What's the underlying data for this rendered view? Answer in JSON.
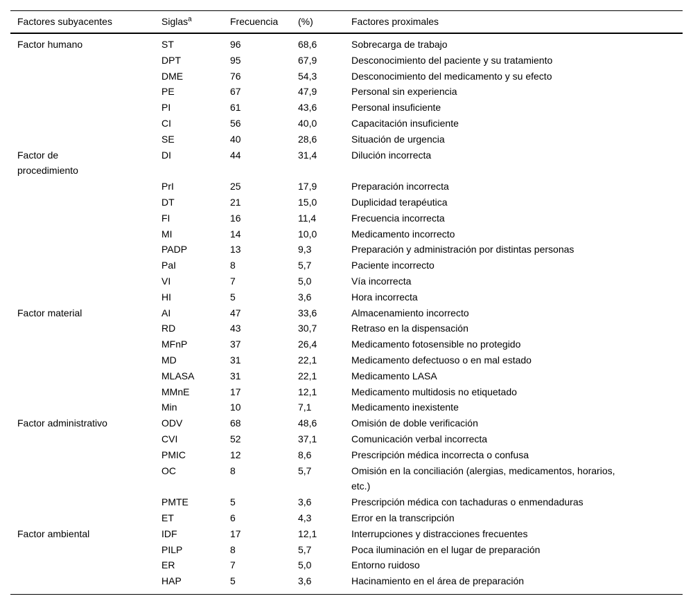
{
  "colors": {
    "background": "#ffffff",
    "text": "#000000",
    "rule": "#000000"
  },
  "table": {
    "headers": [
      {
        "label": "Factores subyacentes",
        "sup": ""
      },
      {
        "label": "Siglas",
        "sup": "a"
      },
      {
        "label": "Frecuencia",
        "sup": ""
      },
      {
        "label": "(%)",
        "sup": ""
      },
      {
        "label": "Factores proximales",
        "sup": ""
      }
    ],
    "rows": [
      {
        "group": "Factor humano",
        "sigla": "ST",
        "frecuencia": "96",
        "pct": "68,6",
        "proximal": "Sobrecarga de trabajo"
      },
      {
        "group": "",
        "sigla": "DPT",
        "frecuencia": "95",
        "pct": "67,9",
        "proximal": "Desconocimiento del paciente y su tratamiento"
      },
      {
        "group": "",
        "sigla": "DME",
        "frecuencia": "76",
        "pct": "54,3",
        "proximal": "Desconocimiento del medicamento y su efecto"
      },
      {
        "group": "",
        "sigla": "PE",
        "frecuencia": "67",
        "pct": "47,9",
        "proximal": "Personal sin experiencia"
      },
      {
        "group": "",
        "sigla": "PI",
        "frecuencia": "61",
        "pct": "43,6",
        "proximal": "Personal insuficiente"
      },
      {
        "group": "",
        "sigla": "CI",
        "frecuencia": "56",
        "pct": "40,0",
        "proximal": "Capacitación insuficiente"
      },
      {
        "group": "",
        "sigla": "SE",
        "frecuencia": "40",
        "pct": "28,6",
        "proximal": "Situación de urgencia"
      },
      {
        "group": "Factor de\nprocedimiento",
        "sigla": "DI",
        "frecuencia": "44",
        "pct": "31,4",
        "proximal": "Dilución incorrecta"
      },
      {
        "group": "",
        "sigla": "PrI",
        "frecuencia": "25",
        "pct": "17,9",
        "proximal": "Preparación incorrecta"
      },
      {
        "group": "",
        "sigla": "DT",
        "frecuencia": "21",
        "pct": "15,0",
        "proximal": "Duplicidad terapéutica"
      },
      {
        "group": "",
        "sigla": "FI",
        "frecuencia": "16",
        "pct": "11,4",
        "proximal": "Frecuencia incorrecta"
      },
      {
        "group": "",
        "sigla": "MI",
        "frecuencia": "14",
        "pct": "10,0",
        "proximal": "Medicamento incorrecto"
      },
      {
        "group": "",
        "sigla": "PADP",
        "frecuencia": "13",
        "pct": "9,3",
        "proximal": "Preparación y administración por distintas personas"
      },
      {
        "group": "",
        "sigla": "PaI",
        "frecuencia": "8",
        "pct": "5,7",
        "proximal": "Paciente incorrecto"
      },
      {
        "group": "",
        "sigla": "VI",
        "frecuencia": "7",
        "pct": "5,0",
        "proximal": "Vía incorrecta"
      },
      {
        "group": "",
        "sigla": "HI",
        "frecuencia": "5",
        "pct": "3,6",
        "proximal": "Hora incorrecta"
      },
      {
        "group": "Factor material",
        "sigla": "AI",
        "frecuencia": "47",
        "pct": "33,6",
        "proximal": "Almacenamiento incorrecto"
      },
      {
        "group": "",
        "sigla": "RD",
        "frecuencia": "43",
        "pct": "30,7",
        "proximal": "Retraso en la dispensación"
      },
      {
        "group": "",
        "sigla": "MFnP",
        "frecuencia": "37",
        "pct": "26,4",
        "proximal": "Medicamento fotosensible no protegido"
      },
      {
        "group": "",
        "sigla": "MD",
        "frecuencia": "31",
        "pct": "22,1",
        "proximal": "Medicamento defectuoso o en mal estado"
      },
      {
        "group": "",
        "sigla": "MLASA",
        "frecuencia": "31",
        "pct": "22,1",
        "proximal": "Medicamento LASA"
      },
      {
        "group": "",
        "sigla": "MMnE",
        "frecuencia": "17",
        "pct": "12,1",
        "proximal": "Medicamento multidosis no etiquetado"
      },
      {
        "group": "",
        "sigla": "Min",
        "frecuencia": "10",
        "pct": "7,1",
        "proximal": "Medicamento inexistente"
      },
      {
        "group": "Factor administrativo",
        "sigla": "ODV",
        "frecuencia": "68",
        "pct": "48,6",
        "proximal": "Omisión de doble verificación"
      },
      {
        "group": "",
        "sigla": "CVI",
        "frecuencia": "52",
        "pct": "37,1",
        "proximal": "Comunicación verbal incorrecta"
      },
      {
        "group": "",
        "sigla": "PMIC",
        "frecuencia": "12",
        "pct": "8,6",
        "proximal": "Prescripción médica incorrecta o confusa"
      },
      {
        "group": "",
        "sigla": "OC",
        "frecuencia": "8",
        "pct": "5,7",
        "proximal": "Omisión en la conciliación (alergias, medicamentos, horarios,\netc.)"
      },
      {
        "group": "",
        "sigla": "PMTE",
        "frecuencia": "5",
        "pct": "3,6",
        "proximal": "Prescripción médica con tachaduras o enmendaduras"
      },
      {
        "group": "",
        "sigla": "ET",
        "frecuencia": "6",
        "pct": "4,3",
        "proximal": "Error en la transcripción"
      },
      {
        "group": "Factor ambiental",
        "sigla": "IDF",
        "frecuencia": "17",
        "pct": "12,1",
        "proximal": "Interrupciones y distracciones frecuentes"
      },
      {
        "group": "",
        "sigla": "PILP",
        "frecuencia": "8",
        "pct": "5,7",
        "proximal": "Poca iluminación en el lugar de preparación"
      },
      {
        "group": "",
        "sigla": "ER",
        "frecuencia": "7",
        "pct": "5,0",
        "proximal": "Entorno ruidoso"
      },
      {
        "group": "",
        "sigla": "HAP",
        "frecuencia": "5",
        "pct": "3,6",
        "proximal": "Hacinamiento en el área de preparación"
      }
    ]
  }
}
